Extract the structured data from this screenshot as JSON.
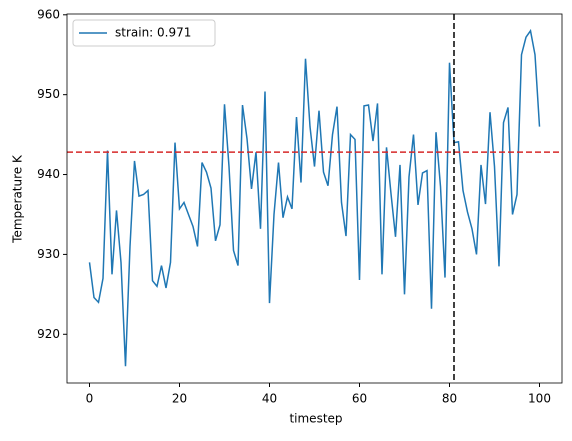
{
  "chart_data": {
    "type": "line",
    "xlabel": "timestep",
    "ylabel": "Temperature K",
    "x": [
      0,
      1,
      2,
      3,
      4,
      5,
      6,
      7,
      8,
      9,
      10,
      11,
      12,
      13,
      14,
      15,
      16,
      17,
      18,
      19,
      20,
      21,
      22,
      23,
      24,
      25,
      26,
      27,
      28,
      29,
      30,
      31,
      32,
      33,
      34,
      35,
      36,
      37,
      38,
      39,
      40,
      41,
      42,
      43,
      44,
      45,
      46,
      47,
      48,
      49,
      50,
      51,
      52,
      53,
      54,
      55,
      56,
      57,
      58,
      59,
      60,
      61,
      62,
      63,
      64,
      65,
      66,
      67,
      68,
      69,
      70,
      71,
      72,
      73,
      74,
      75,
      76,
      77,
      78,
      79,
      80,
      81,
      82,
      83,
      84,
      85,
      86,
      87,
      88,
      89,
      90,
      91,
      92,
      93,
      94,
      95,
      96,
      97,
      98,
      99,
      100
    ],
    "series": [
      {
        "name": "strain: 0.971",
        "color": "#1f77b4",
        "values": [
          929,
          924.6,
          924,
          927,
          943,
          927.5,
          935.5,
          929,
          916,
          931,
          941.7,
          937.3,
          937.5,
          938,
          926.7,
          926,
          928.6,
          925.8,
          929,
          944,
          935.7,
          936.5,
          935,
          933.5,
          931,
          941.5,
          940.3,
          938.3,
          931.7,
          933.7,
          948.8,
          941,
          930.5,
          928.6,
          948.7,
          944.5,
          938.2,
          942.8,
          933.2,
          950.4,
          923.9,
          935,
          941.5,
          934.6,
          937.2,
          935.7,
          947.2,
          939,
          954.5,
          946,
          941,
          948,
          940.3,
          938.6,
          945,
          948.5,
          936.5,
          932.3,
          945,
          944.4,
          926.8,
          948.6,
          948.7,
          944.2,
          948.9,
          927.5,
          943.4,
          937.6,
          932.2,
          941.2,
          925,
          939.7,
          945,
          936.2,
          940.2,
          940.5,
          923.2,
          945.3,
          938.5,
          927.1,
          954,
          944,
          944.1,
          938,
          935.3,
          933.2,
          930,
          941.2,
          936.3,
          947.8,
          941,
          928.5,
          946.5,
          948.4,
          935,
          937.5,
          955,
          957.2,
          958,
          955,
          946
        ]
      }
    ],
    "hlines": [
      {
        "y": 942.8,
        "color": "#d62728"
      }
    ],
    "vlines": [
      {
        "x": 81,
        "color": "#000000"
      }
    ],
    "xlim": [
      -5,
      105
    ],
    "xticks": [
      0,
      20,
      40,
      60,
      80,
      100
    ],
    "ylim": [
      913.9,
      960.1
    ],
    "yticks": [
      920,
      930,
      940,
      950,
      960
    ],
    "legend": "upper left",
    "grid": false
  }
}
